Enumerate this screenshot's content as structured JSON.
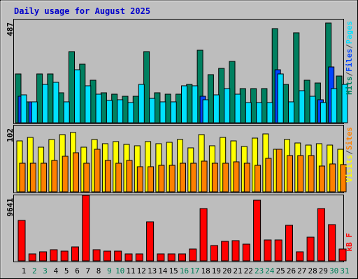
{
  "chart_data": {
    "type": "bar",
    "title": "Daily usage for August 2025",
    "categories": [
      "1",
      "2",
      "3",
      "4",
      "5",
      "6",
      "7",
      "8",
      "9",
      "10",
      "11",
      "12",
      "13",
      "14",
      "15",
      "16",
      "17",
      "18",
      "19",
      "20",
      "21",
      "22",
      "23",
      "24",
      "25",
      "26",
      "27",
      "28",
      "29",
      "30",
      "31"
    ],
    "weekend_days": [
      2,
      3,
      9,
      10,
      16,
      17,
      23,
      24,
      30,
      31
    ],
    "panels": [
      {
        "id": "hits-files-pages",
        "scale_label": "487",
        "ymax": 487,
        "legend": [
          {
            "text": "Pages",
            "color": "#00e0ff"
          },
          {
            "text": "/",
            "color": "#444444"
          },
          {
            "text": "Files",
            "color": "#0044ff"
          },
          {
            "text": "/",
            "color": "#444444"
          },
          {
            "text": "Hits",
            "color": "#008060"
          }
        ],
        "series": [
          {
            "name": "Hits",
            "color": "#008060",
            "values": [
              231,
              100,
              231,
              231,
              143,
              334,
              276,
              201,
              143,
              134,
              124,
              124,
              334,
              143,
              134,
              134,
              180,
              341,
              227,
              257,
              289,
              160,
              160,
              160,
              444,
              180,
              424,
              201,
              187,
              470,
              222
            ]
          },
          {
            "name": "Files",
            "color": "#0044ff",
            "values": [
              124,
              100,
              0,
              0,
              0,
              0,
              0,
              0,
              0,
              0,
              0,
              0,
              0,
              0,
              0,
              0,
              0,
              124,
              0,
              0,
              0,
              0,
              0,
              0,
              249,
              0,
              0,
              0,
              110,
              263,
              0
            ]
          },
          {
            "name": "Pages",
            "color": "#00e0ff",
            "values": [
              130,
              100,
              180,
              190,
              100,
              249,
              174,
              136,
              106,
              110,
              94,
              180,
              115,
              100,
              100,
              174,
              174,
              110,
              130,
              160,
              136,
              94,
              94,
              94,
              231,
              100,
              150,
              124,
              94,
              160,
              180
            ]
          }
        ]
      },
      {
        "id": "visits-sites",
        "scale_label": "102",
        "ymax": 102,
        "legend": [
          {
            "text": "Sites",
            "color": "#ff8000"
          },
          {
            "text": "/",
            "color": "#444444"
          },
          {
            "text": "Visits",
            "color": "#ffff00"
          }
        ],
        "series": [
          {
            "name": "Visits",
            "color": "#ffff00",
            "values": [
              78,
              84,
              69,
              80,
              88,
              91,
              69,
              81,
              74,
              77,
              73,
              71,
              77,
              74,
              76,
              80,
              68,
              88,
              71,
              84,
              78,
              70,
              83,
              89,
              66,
              81,
              75,
              72,
              74,
              72,
              65
            ]
          },
          {
            "name": "Sites",
            "color": "#ff8000",
            "values": [
              44,
              44,
              44,
              48,
              55,
              60,
              44,
              66,
              48,
              44,
              48,
              39,
              39,
              41,
              41,
              44,
              44,
              47,
              44,
              44,
              46,
              44,
              41,
              52,
              66,
              56,
              56,
              56,
              40,
              43,
              42
            ]
          }
        ]
      },
      {
        "id": "kbytes",
        "scale_label": "9641",
        "ymax": 9641,
        "legend": [
          {
            "text": "KBytes",
            "color": "#ff0000"
          }
        ],
        "legend_display": "kB F",
        "series": [
          {
            "name": "KBytes",
            "color": "#ff0000",
            "values": [
              5899,
              1065,
              1340,
              1640,
              1473,
              2019,
              9641,
              1662,
              1473,
              1473,
              1066,
              1065,
              5793,
              1065,
              1065,
              1065,
              1731,
              7721,
              2300,
              2823,
              2954,
              2503,
              8900,
              3060,
              3093,
              5214,
              1351,
              3497,
              7721,
              5363,
              1757
            ]
          }
        ]
      }
    ]
  }
}
